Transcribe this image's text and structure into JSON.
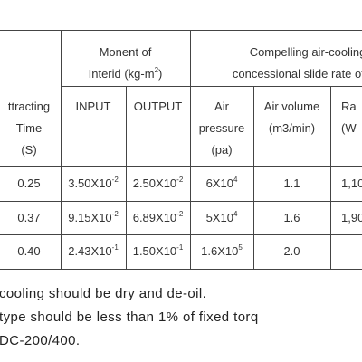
{
  "table": {
    "header": {
      "group1": [
        "Monent of",
        [
          "Interid (kg-m",
          {
            "sup": "2"
          },
          ")"
        ]
      ],
      "group2": [
        "Compelling air-cooling",
        "concessional slide rate of wo"
      ],
      "columns": [
        [
          "ttracting",
          "Time",
          "(S)"
        ],
        [
          "INPUT"
        ],
        [
          "OUTPUT"
        ],
        [
          "Air",
          "pressure",
          "(pa)"
        ],
        [
          "Air volume",
          "(m3/min)"
        ],
        [
          "Ra",
          "(W"
        ]
      ]
    },
    "rows": [
      [
        "0.25",
        [
          "3.50X10",
          {
            "sup": "-2"
          }
        ],
        [
          "2.50X10",
          {
            "sup": "-2"
          }
        ],
        [
          "6X10",
          {
            "sup": "4"
          }
        ],
        "1.1",
        "1,10"
      ],
      [
        "0.37",
        [
          "9.15X10",
          {
            "sup": "-2"
          }
        ],
        [
          "6.89X10",
          {
            "sup": "-2"
          }
        ],
        [
          "5X10",
          {
            "sup": "4"
          }
        ],
        "1.6",
        "1,90"
      ],
      [
        "0.40",
        [
          "2.43X10",
          {
            "sup": "-1"
          }
        ],
        [
          "1.50X10",
          {
            "sup": "-1"
          }
        ],
        [
          "1.6X10",
          {
            "sup": "5"
          }
        ],
        "2.0",
        ""
      ]
    ]
  },
  "notes": [
    "cooling should be dry and de-oil.",
    "type should be less than 1% of fixed torq",
    "DC-200/400."
  ]
}
